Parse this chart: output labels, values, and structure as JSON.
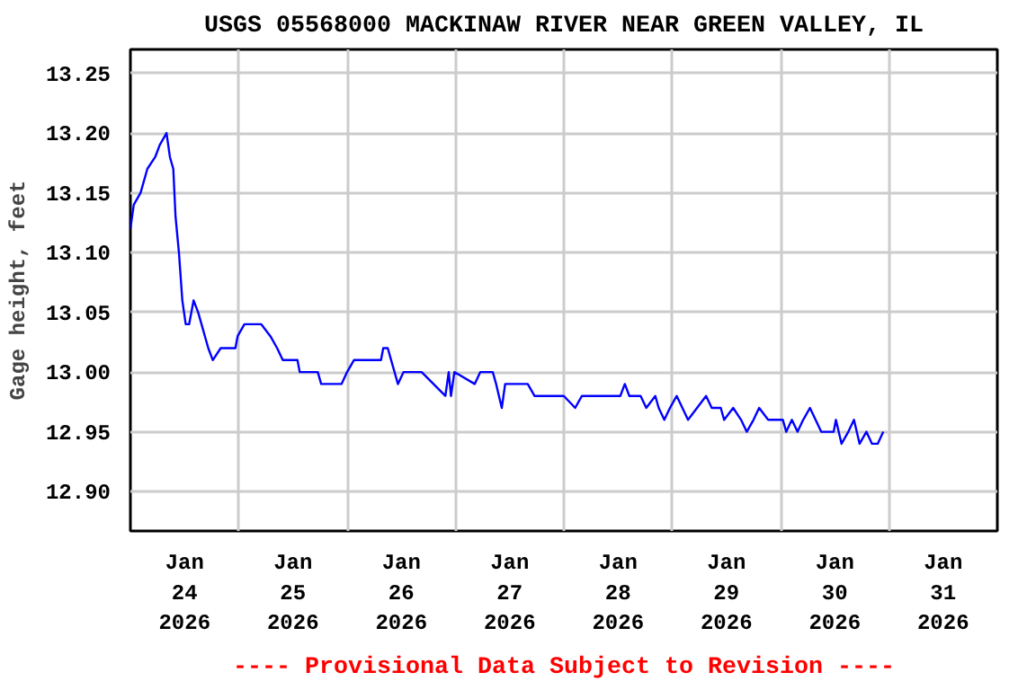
{
  "chart_data": {
    "type": "line",
    "title": "USGS 05568000 MACKINAW RIVER NEAR GREEN VALLEY, IL",
    "ylabel": "Gage height, feet",
    "annotations": [
      "---- Provisional Data Subject to Revision ----"
    ],
    "xlim": [
      "2026-01-24",
      "2026-02-01"
    ],
    "xticks": [
      {
        "value": "2026-01-24T12:00",
        "label": "Jan\n24\n2026"
      },
      {
        "value": "2026-01-25T12:00",
        "label": "Jan\n25\n2026"
      },
      {
        "value": "2026-01-26T12:00",
        "label": "Jan\n26\n2026"
      },
      {
        "value": "2026-01-27T12:00",
        "label": "Jan\n27\n2026"
      },
      {
        "value": "2026-01-28T12:00",
        "label": "Jan\n28\n2026"
      },
      {
        "value": "2026-01-29T12:00",
        "label": "Jan\n29\n2026"
      },
      {
        "value": "2026-01-30T12:00",
        "label": "Jan\n30\n2026"
      },
      {
        "value": "2026-01-31T12:00",
        "label": "Jan\n31\n2026"
      },
      {
        "value": "2026-01-25",
        "label": null
      },
      {
        "value": "2026-01-26",
        "label": null
      },
      {
        "value": "2026-01-27",
        "label": null
      },
      {
        "value": "2026-01-28",
        "label": null
      },
      {
        "value": "2026-01-29",
        "label": null
      },
      {
        "value": "2026-01-30",
        "label": null
      },
      {
        "value": "2026-01-31",
        "label": null
      }
    ],
    "ylim": [
      12.867,
      13.27
    ],
    "yticks": [
      {
        "value": 12.9,
        "label": "12.90"
      },
      {
        "value": 12.95,
        "label": "12.95"
      },
      {
        "value": 13.0,
        "label": "13.00"
      },
      {
        "value": 13.05,
        "label": "13.05"
      },
      {
        "value": 13.1,
        "label": "13.10"
      },
      {
        "value": 13.15,
        "label": "13.15"
      },
      {
        "value": 13.2,
        "label": "13.20"
      },
      {
        "value": 13.25,
        "label": "13.25"
      }
    ],
    "grid": true,
    "series": [
      {
        "color": "#0000ff",
        "x": [
          "2026-01-24T00:00",
          "2026-01-24T00:45",
          "2026-01-24T02:15",
          "2026-01-24T03:00",
          "2026-01-24T03:45",
          "2026-01-24T05:30",
          "2026-01-24T06:30",
          "2026-01-24T08:00",
          "2026-01-24T08:45",
          "2026-01-24T09:30",
          "2026-01-24T10:00",
          "2026-01-24T10:45",
          "2026-01-24T11:30",
          "2026-01-24T12:15",
          "2026-01-24T13:00",
          "2026-01-24T14:00",
          "2026-01-24T15:00",
          "2026-01-24T15:45",
          "2026-01-24T16:30",
          "2026-01-24T17:15",
          "2026-01-24T18:15",
          "2026-01-24T20:00",
          "2026-01-24T23:15",
          "2026-01-24T23:45",
          "2026-01-25T01:15",
          "2026-01-25T05:00",
          "2026-01-25T07:00",
          "2026-01-25T08:30",
          "2026-01-25T09:45",
          "2026-01-25T13:00",
          "2026-01-25T13:30",
          "2026-01-25T17:30",
          "2026-01-25T18:15",
          "2026-01-25T22:45",
          "2026-01-26T00:00",
          "2026-01-26T01:30",
          "2026-01-26T07:30",
          "2026-01-26T08:00",
          "2026-01-26T09:00",
          "2026-01-26T09:45",
          "2026-01-26T10:30",
          "2026-01-26T11:15",
          "2026-01-26T12:30",
          "2026-01-26T16:30",
          "2026-01-26T21:45",
          "2026-01-26T22:30",
          "2026-01-26T23:00",
          "2026-01-26T23:45",
          "2026-01-27T04:15",
          "2026-01-27T05:30",
          "2026-01-27T08:15",
          "2026-01-27T09:00",
          "2026-01-27T10:15",
          "2026-01-27T11:00",
          "2026-01-27T16:00",
          "2026-01-27T17:30",
          "2026-01-28T00:00",
          "2026-01-28T02:30",
          "2026-01-28T04:00",
          "2026-01-28T12:30",
          "2026-01-28T13:30",
          "2026-01-28T14:30",
          "2026-01-28T17:00",
          "2026-01-28T18:15",
          "2026-01-28T20:15",
          "2026-01-28T21:00",
          "2026-01-28T22:15",
          "2026-01-28T23:30",
          "2026-01-29T01:00",
          "2026-01-29T02:15",
          "2026-01-29T03:30",
          "2026-01-29T07:30",
          "2026-01-29T08:45",
          "2026-01-29T10:45",
          "2026-01-29T11:30",
          "2026-01-29T13:30",
          "2026-01-29T15:15",
          "2026-01-29T16:30",
          "2026-01-29T18:00",
          "2026-01-29T19:15",
          "2026-01-29T21:15",
          "2026-01-30T00:30",
          "2026-01-30T01:15",
          "2026-01-30T02:30",
          "2026-01-30T03:45",
          "2026-01-30T05:00",
          "2026-01-30T06:30",
          "2026-01-30T07:45",
          "2026-01-30T09:00",
          "2026-01-30T11:45",
          "2026-01-30T12:15",
          "2026-01-30T13:30",
          "2026-01-30T15:00",
          "2026-01-30T16:15",
          "2026-01-30T17:30",
          "2026-01-30T19:00",
          "2026-01-30T20:15",
          "2026-01-30T21:30",
          "2026-01-30T22:45"
        ],
        "values": [
          13.12,
          13.14,
          13.15,
          13.16,
          13.17,
          13.18,
          13.19,
          13.2,
          13.18,
          13.17,
          13.13,
          13.1,
          13.06,
          13.04,
          13.04,
          13.06,
          13.05,
          13.04,
          13.03,
          13.02,
          13.01,
          13.02,
          13.02,
          13.03,
          13.04,
          13.04,
          13.03,
          13.02,
          13.01,
          13.01,
          13.0,
          13.0,
          12.99,
          12.99,
          13.0,
          13.01,
          13.01,
          13.02,
          13.02,
          13.01,
          13.0,
          12.99,
          13.0,
          13.0,
          12.98,
          13.0,
          12.98,
          13.0,
          12.99,
          13.0,
          13.0,
          12.99,
          12.97,
          12.99,
          12.99,
          12.98,
          12.98,
          12.97,
          12.98,
          12.98,
          12.99,
          12.98,
          12.98,
          12.97,
          12.98,
          12.97,
          12.96,
          12.97,
          12.98,
          12.97,
          12.96,
          12.98,
          12.97,
          12.97,
          12.96,
          12.97,
          12.96,
          12.95,
          12.96,
          12.97,
          12.96,
          12.96,
          12.95,
          12.96,
          12.95,
          12.96,
          12.97,
          12.96,
          12.95,
          12.95,
          12.96,
          12.94,
          12.95,
          12.96,
          12.94,
          12.95,
          12.94,
          12.94,
          12.95
        ]
      }
    ]
  }
}
